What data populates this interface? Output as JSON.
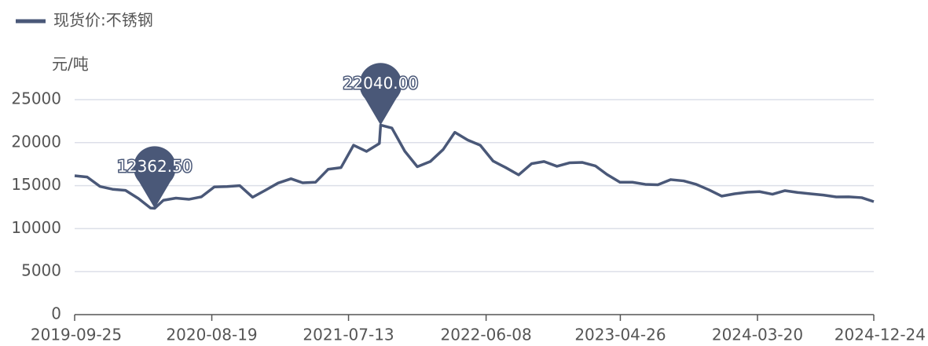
{
  "chart_data": {
    "type": "line",
    "legend": "现货价:不锈钢",
    "y_label": "元/吨",
    "color": "#4a5878",
    "grid": true,
    "ylim": [
      0,
      25000
    ],
    "yticks": [
      0,
      5000,
      10000,
      15000,
      20000,
      25000
    ],
    "xlim": [
      "2019-09-25",
      "2024-12-24"
    ],
    "xticks": [
      "2019-09-25",
      "2020-08-19",
      "2021-07-13",
      "2022-06-08",
      "2023-04-26",
      "2024-03-20",
      "2024-12-24"
    ],
    "x": [
      "2019-09-25",
      "2019-10-25",
      "2019-11-25",
      "2019-12-25",
      "2020-01-25",
      "2020-02-25",
      "2020-03-25",
      "2020-04-04",
      "2020-04-25",
      "2020-05-25",
      "2020-06-25",
      "2020-07-25",
      "2020-08-25",
      "2020-09-25",
      "2020-10-25",
      "2020-11-25",
      "2020-12-25",
      "2021-01-25",
      "2021-02-25",
      "2021-03-25",
      "2021-04-25",
      "2021-05-25",
      "2021-06-25",
      "2021-07-25",
      "2021-08-25",
      "2021-09-25",
      "2021-09-28",
      "2021-10-25",
      "2021-11-25",
      "2021-12-25",
      "2022-01-25",
      "2022-02-25",
      "2022-03-25",
      "2022-04-25",
      "2022-05-25",
      "2022-06-25",
      "2022-07-25",
      "2022-08-25",
      "2022-09-25",
      "2022-10-25",
      "2022-11-25",
      "2022-12-25",
      "2023-01-25",
      "2023-02-25",
      "2023-03-25",
      "2023-04-25",
      "2023-05-25",
      "2023-06-25",
      "2023-07-25",
      "2023-08-25",
      "2023-09-25",
      "2023-10-25",
      "2023-11-25",
      "2023-12-25",
      "2024-01-25",
      "2024-02-25",
      "2024-03-25",
      "2024-04-25",
      "2024-05-25",
      "2024-06-25",
      "2024-07-25",
      "2024-08-25",
      "2024-09-25",
      "2024-10-25",
      "2024-11-25",
      "2024-12-24"
    ],
    "values": [
      16150,
      16000,
      14900,
      14580,
      14450,
      13500,
      12400,
      12362.5,
      13300,
      13550,
      13410,
      13700,
      14850,
      14900,
      15000,
      13650,
      14450,
      15300,
      15800,
      15330,
      15400,
      16900,
      17100,
      19700,
      18980,
      19900,
      22040,
      21700,
      19000,
      17200,
      17800,
      19200,
      21200,
      20300,
      19700,
      17850,
      17100,
      16250,
      17550,
      17800,
      17250,
      17650,
      17700,
      17300,
      16300,
      15400,
      15400,
      15150,
      15100,
      15700,
      15550,
      15150,
      14500,
      13780,
      14050,
      14230,
      14300,
      14000,
      14420,
      14200,
      14050,
      13900,
      13690,
      13700,
      13600,
      13140
    ],
    "markers": [
      {
        "x": "2020-04-04",
        "value": 12362.5,
        "label": "12362.50"
      },
      {
        "x": "2021-09-28",
        "value": 22040,
        "label": "22040.00"
      }
    ]
  }
}
